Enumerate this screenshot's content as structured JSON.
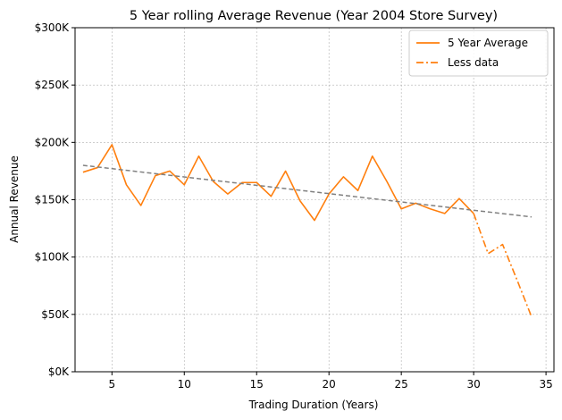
{
  "chart_data": {
    "type": "line",
    "title": "5 Year rolling Average Revenue (Year 2004 Store Survey)",
    "xlabel": "Trading Duration (Years)",
    "ylabel": "Annual Revenue",
    "xlim": [
      2.45,
      35.55
    ],
    "ylim": [
      0,
      300000
    ],
    "xticks": [
      5,
      10,
      15,
      20,
      25,
      30,
      35
    ],
    "yticks": [
      0,
      50000,
      100000,
      150000,
      200000,
      250000,
      300000
    ],
    "ytick_labels": [
      "$0K",
      "$50K",
      "$100K",
      "$150K",
      "$200K",
      "$250K",
      "$300K"
    ],
    "grid": true,
    "legend_position": "top-right",
    "colors": {
      "series": "#ff7f0e",
      "trend": "#808080"
    },
    "series": [
      {
        "name": "5 Year Average",
        "style": "solid",
        "x": [
          3,
          4,
          5,
          6,
          7,
          8,
          9,
          10,
          11,
          12,
          13,
          14,
          15,
          16,
          17,
          18,
          19,
          20,
          21,
          22,
          23,
          24,
          25,
          26,
          27,
          28,
          29,
          30
        ],
        "y": [
          174000,
          178000,
          198000,
          163000,
          145000,
          171000,
          175000,
          163000,
          188000,
          166000,
          155000,
          165000,
          165000,
          153000,
          175000,
          149000,
          132000,
          155000,
          170000,
          158000,
          188000,
          166000,
          142000,
          147000,
          142000,
          138000,
          151000,
          138000
        ]
      },
      {
        "name": "Less data",
        "style": "dashdot",
        "x": [
          30,
          31,
          32,
          33,
          34
        ],
        "y": [
          138000,
          103000,
          111000,
          80000,
          48000
        ]
      },
      {
        "style": "dashed",
        "x": [
          3,
          34
        ],
        "y": [
          180000,
          135000
        ]
      }
    ]
  }
}
